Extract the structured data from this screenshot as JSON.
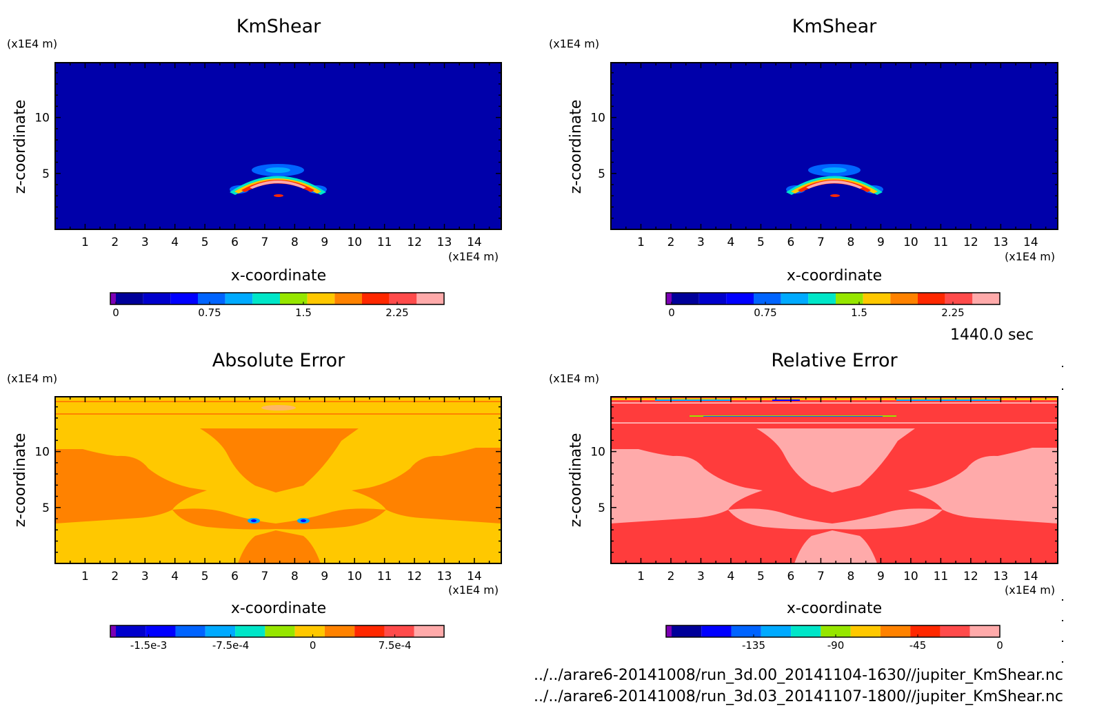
{
  "time_label": "1440.0 sec",
  "files": [
    "../../arare6-20141008/run_3d.00_20141104-1630//jupiter_KmShear.nc",
    "../../arare6-20141008/run_3d.03_20141107-1800//jupiter_KmShear.nc"
  ],
  "chart_data": [
    {
      "type": "heatmap",
      "title": "KmShear",
      "xlabel": "x-coordinate",
      "ylabel": "z-coordinate",
      "x_unit": "(x1E4 m)",
      "y_unit": "(x1E4 m)",
      "x_ticks": [
        "1",
        "2",
        "3",
        "4",
        "5",
        "6",
        "7",
        "8",
        "9",
        "10",
        "11",
        "12",
        "13",
        "14"
      ],
      "y_ticks": [
        "5",
        "10"
      ],
      "xlim": [
        0,
        14.9
      ],
      "ylim": [
        0,
        14.9
      ],
      "colorbar": {
        "levels": 12,
        "colors": [
          "#7c00b4",
          "#000099",
          "#0000cc",
          "#0000ff",
          "#0064ff",
          "#00aaff",
          "#00e6c8",
          "#96e600",
          "#ffc800",
          "#ff8200",
          "#ff2800",
          "#ff4b4b",
          "#ffaaaa"
        ],
        "tick_labels": [
          "0",
          "0.75",
          "1.5",
          "2.25"
        ],
        "tick_values": [
          0,
          0.75,
          1.5,
          2.25
        ],
        "range": [
          0,
          2.625
        ]
      },
      "field": "mostly near 0 with a peak of about 2.5 along an arch near x = 6.5 to 9, z = 3 to 4"
    },
    {
      "type": "heatmap",
      "title": "KmShear",
      "xlabel": "x-coordinate",
      "ylabel": "z-coordinate",
      "x_unit": "(x1E4 m)",
      "y_unit": "(x1E4 m)",
      "x_ticks": [
        "1",
        "2",
        "3",
        "4",
        "5",
        "6",
        "7",
        "8",
        "9",
        "10",
        "11",
        "12",
        "13",
        "14"
      ],
      "y_ticks": [
        "5",
        "10"
      ],
      "xlim": [
        0,
        14.9
      ],
      "ylim": [
        0,
        14.9
      ],
      "colorbar": {
        "levels": 12,
        "colors": [
          "#7c00b4",
          "#000099",
          "#0000cc",
          "#0000ff",
          "#0064ff",
          "#00aaff",
          "#00e6c8",
          "#96e600",
          "#ffc800",
          "#ff8200",
          "#ff2800",
          "#ff4b4b",
          "#ffaaaa"
        ],
        "tick_labels": [
          "0",
          "0.75",
          "1.5",
          "2.25"
        ],
        "tick_values": [
          0,
          0.75,
          1.5,
          2.25
        ],
        "range": [
          0,
          2.625
        ]
      },
      "field": "mostly near 0 with a peak of about 2.5 along an arch near x = 6.5 to 9, z = 3 to 4"
    },
    {
      "type": "heatmap",
      "title": "Absolute Error",
      "xlabel": "x-coordinate",
      "ylabel": "z-coordinate",
      "x_unit": "(x1E4 m)",
      "y_unit": "(x1E4 m)",
      "x_ticks": [
        "1",
        "2",
        "3",
        "4",
        "5",
        "6",
        "7",
        "8",
        "9",
        "10",
        "11",
        "12",
        "13",
        "14"
      ],
      "y_ticks": [
        "5",
        "10"
      ],
      "xlim": [
        0,
        14.9
      ],
      "ylim": [
        0,
        14.9
      ],
      "colorbar": {
        "levels": 11,
        "colors": [
          "#7c00b4",
          "#0000cc",
          "#0000ff",
          "#0064ff",
          "#00aaff",
          "#00e6c8",
          "#96e600",
          "#ffc800",
          "#ff8200",
          "#ff2800",
          "#ff4b4b",
          "#ffaaaa"
        ],
        "tick_labels": [
          "-1.5e-3",
          "-7.5e-4",
          "0",
          "7.5e-4"
        ],
        "tick_values": [
          -0.0015,
          -0.00075,
          0,
          0.00075
        ],
        "range": [
          -0.0018,
          0.0012
        ]
      },
      "field": "values between about -3.75e-4 and 3.75e-4 over most of the domain, with small negative spots near x = 6.8 and x = 8.4, z = 3.6"
    },
    {
      "type": "heatmap",
      "title": "Relative Error",
      "xlabel": "x-coordinate",
      "ylabel": "z-coordinate",
      "x_unit": "(x1E4 m)",
      "y_unit": "(x1E4 m)",
      "x_ticks": [
        "1",
        "2",
        "3",
        "4",
        "5",
        "6",
        "7",
        "8",
        "9",
        "10",
        "11",
        "12",
        "13",
        "14"
      ],
      "y_ticks": [
        "5",
        "10"
      ],
      "xlim": [
        0,
        14.9
      ],
      "ylim": [
        0,
        14.9
      ],
      "colorbar": {
        "levels": 11,
        "colors": [
          "#7c00b4",
          "#000099",
          "#0000ff",
          "#0064ff",
          "#00aaff",
          "#00e6c8",
          "#96e600",
          "#ffc800",
          "#ff8200",
          "#ff2800",
          "#ff4b4b",
          "#ffaaaa"
        ],
        "tick_labels": [
          "-135",
          "-90",
          "-45",
          "0"
        ],
        "tick_values": [
          -135,
          -90,
          -45,
          0
        ],
        "range": [
          -180,
          0
        ]
      },
      "field": "values between about -15 and 0 over most of the domain, with strong negative bands near the top boundary"
    }
  ]
}
